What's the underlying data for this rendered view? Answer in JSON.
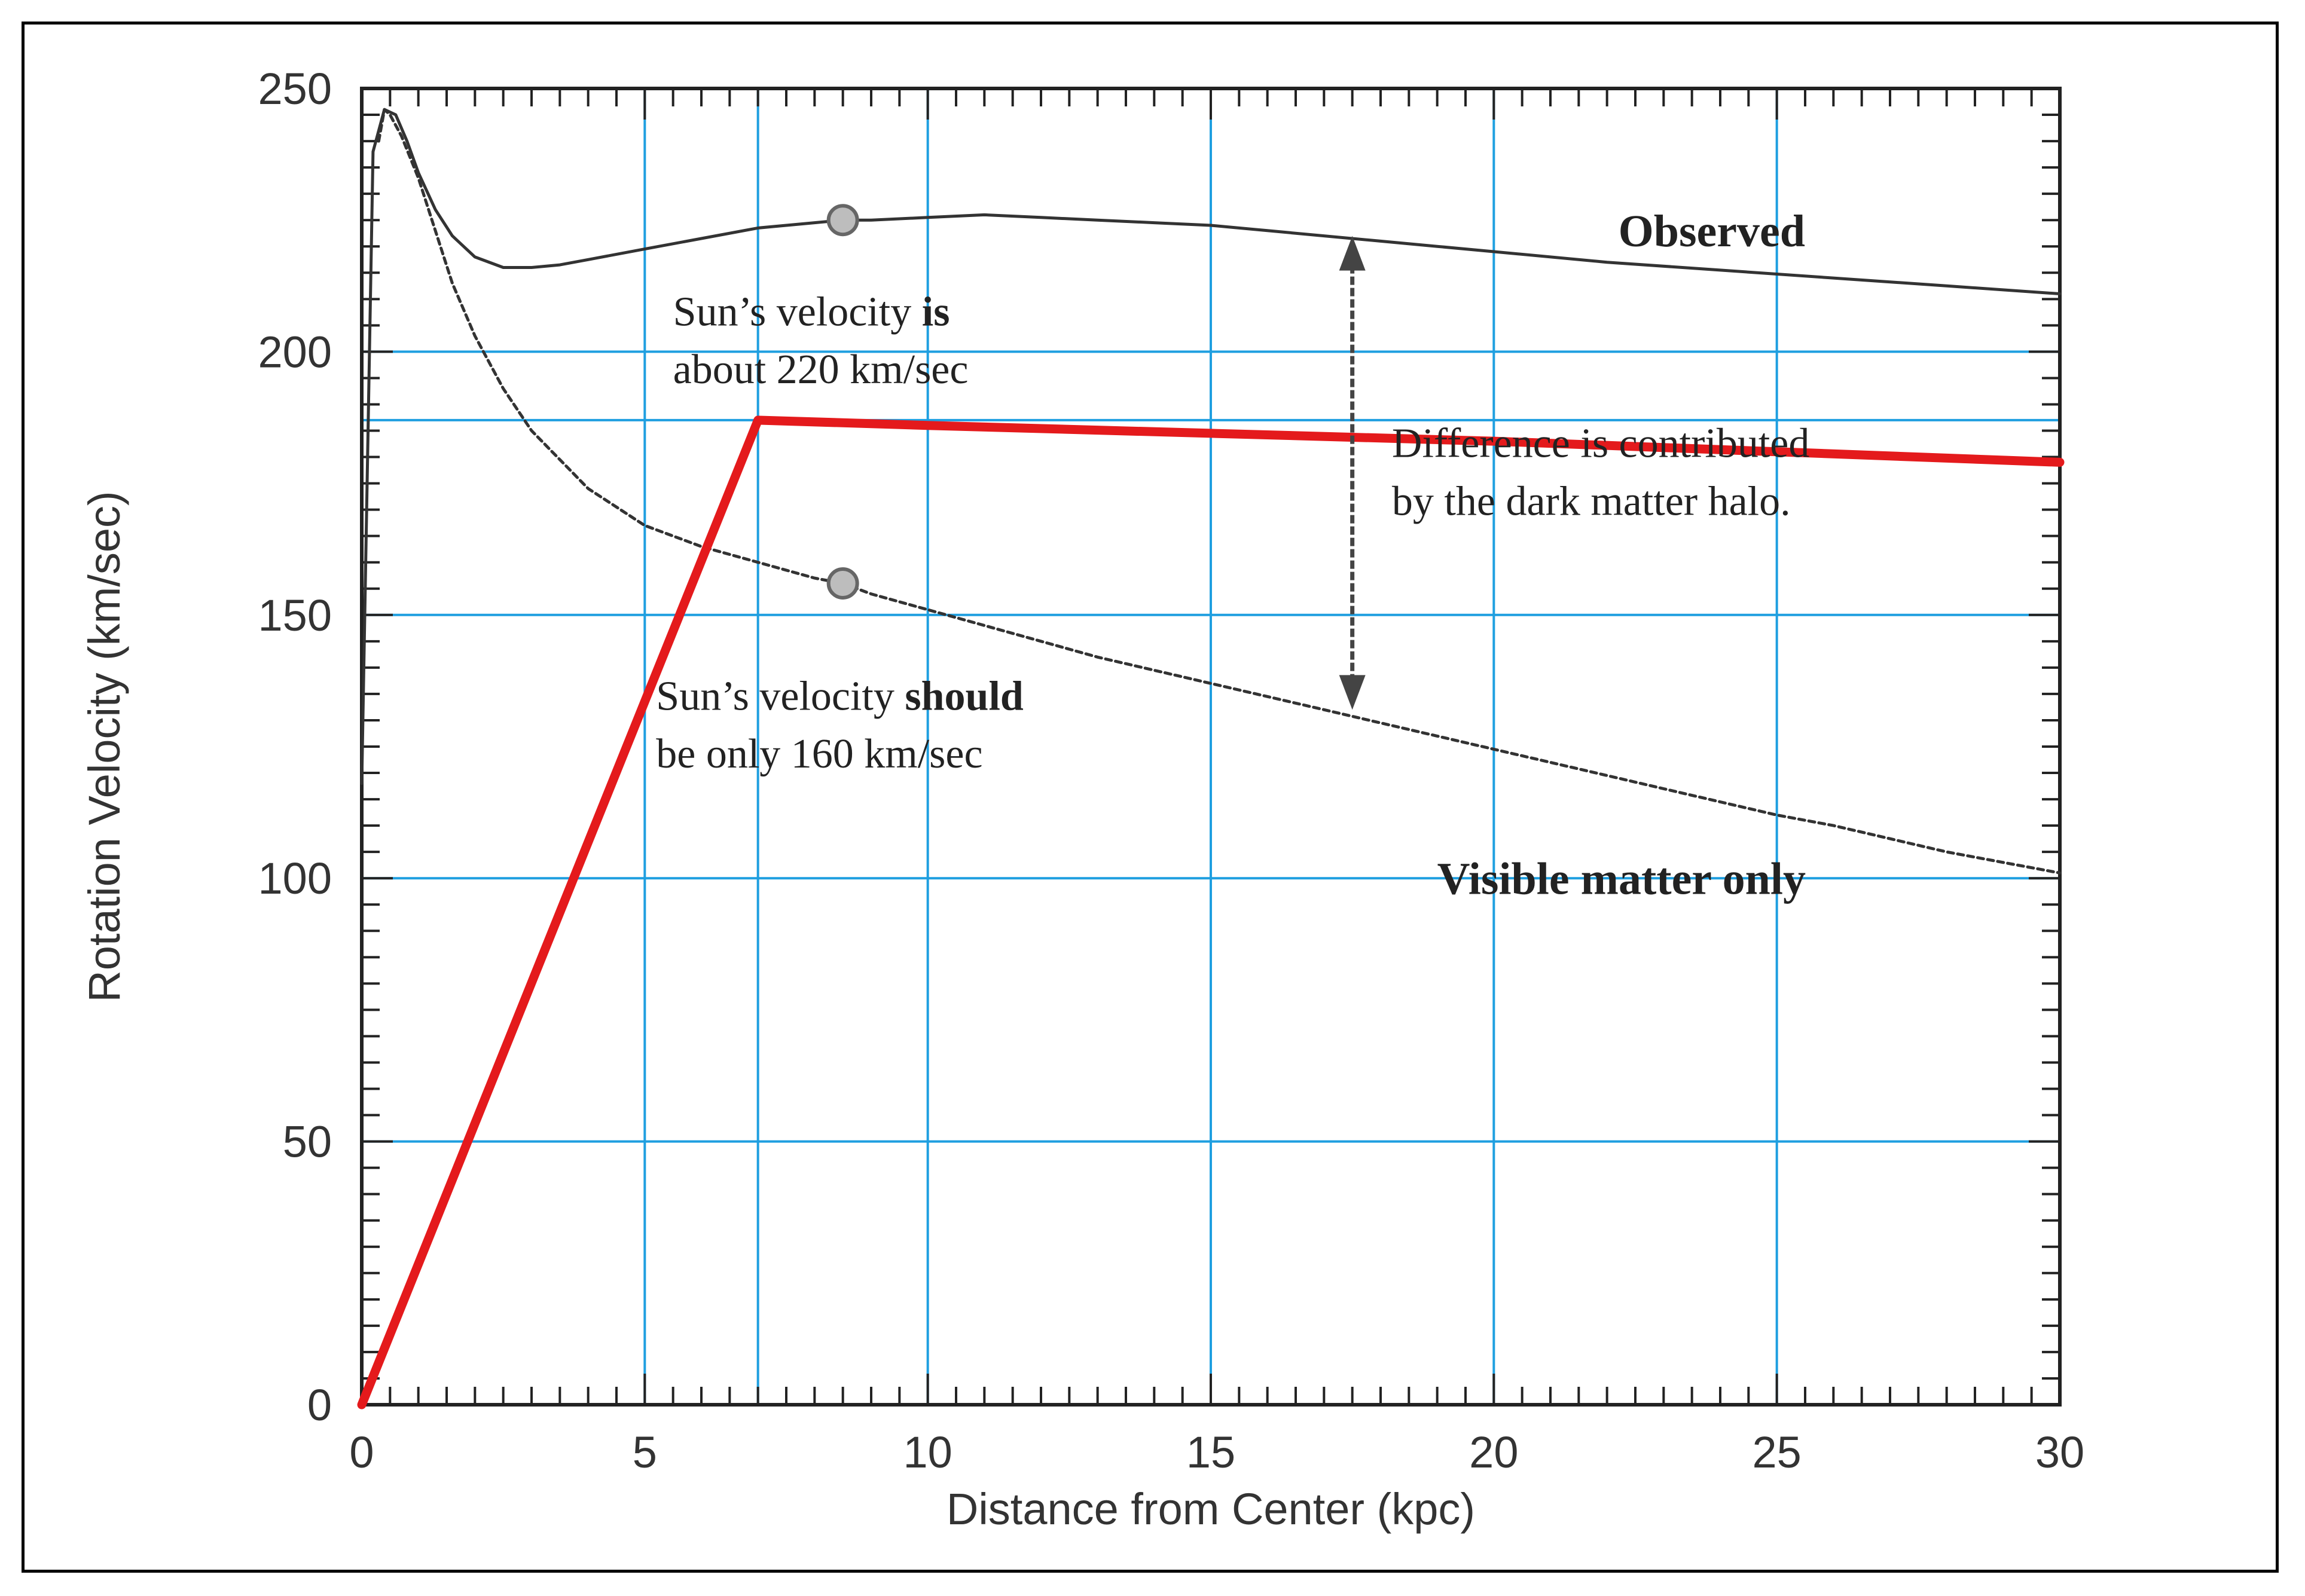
{
  "chart_data": {
    "type": "line",
    "xlabel": "Distance from Center (kpc)",
    "ylabel": "Rotation Velocity (km/sec)",
    "xlim": [
      0,
      30
    ],
    "ylim": [
      0,
      250
    ],
    "x_ticks": [
      0,
      5,
      10,
      15,
      20,
      25,
      30
    ],
    "y_ticks": [
      0,
      50,
      100,
      150,
      200,
      250
    ],
    "grid": true,
    "grid_color": "#1f9fe0",
    "extra_grid_x": [
      7
    ],
    "extra_grid_y": [
      187
    ],
    "series": [
      {
        "name": "Observed",
        "color": "#333333",
        "style": "solid",
        "x": [
          0,
          0.2,
          0.4,
          0.6,
          0.8,
          1,
          1.3,
          1.6,
          2,
          2.5,
          3,
          3.5,
          4,
          5,
          6,
          7,
          8,
          8.5,
          9,
          10,
          11,
          12,
          13,
          14,
          15,
          16,
          17,
          18,
          19,
          20,
          22,
          24,
          26,
          28,
          30
        ],
        "y": [
          118,
          238,
          246,
          245,
          240,
          234,
          227,
          222,
          218,
          216,
          216,
          216.5,
          217.5,
          219.5,
          221.5,
          223.5,
          224.5,
          225,
          225,
          225.5,
          226,
          225.5,
          225,
          224.5,
          224,
          223,
          222,
          221,
          220,
          219,
          217,
          215.5,
          214,
          212.5,
          211
        ]
      },
      {
        "name": "Visible matter only",
        "color": "#333333",
        "style": "dashed",
        "x": [
          0.3,
          0.4,
          0.5,
          0.7,
          1,
          1.3,
          1.6,
          2,
          2.5,
          3,
          4,
          5,
          6,
          7,
          8,
          8.5,
          9,
          10,
          11,
          12,
          13,
          14,
          15,
          16,
          17,
          18,
          19,
          20,
          21,
          22,
          23,
          24,
          25,
          26,
          27,
          28,
          29,
          30
        ],
        "y": [
          240,
          246,
          245,
          241,
          233,
          223,
          213,
          203,
          193,
          185,
          174,
          167,
          163,
          160,
          157,
          156,
          154,
          151,
          148,
          145,
          142,
          139.5,
          137,
          134.5,
          132,
          129.5,
          127,
          124.5,
          122,
          119.5,
          117,
          114.5,
          112,
          110,
          107.5,
          105,
          103,
          101
        ]
      },
      {
        "name": "",
        "color": "#e41a1c",
        "style": "solid",
        "x": [
          0,
          7,
          10,
          15,
          20,
          25,
          30
        ],
        "y": [
          0,
          187,
          186,
          184.5,
          183,
          181,
          179
        ]
      }
    ],
    "markers": [
      {
        "x": 8.5,
        "y": 225,
        "name": "observed-sun-marker"
      },
      {
        "x": 8.5,
        "y": 156,
        "name": "visible-sun-marker"
      }
    ],
    "arrow": {
      "x": 17.5,
      "y_top": 222,
      "y_bottom": 132
    },
    "annotations": {
      "observed_label": "Observed",
      "visible_label": "Visible matter only",
      "sun_is_line1_pre": "Sun’s velocity ",
      "sun_is_line1_bold": "is",
      "sun_is_line2": "about 220 km/sec",
      "sun_should_line1_pre": "Sun’s velocity ",
      "sun_should_line1_bold": "should",
      "sun_should_line2": "be only 160 km/sec",
      "difference_line1": "Difference is contributed",
      "difference_line2": "by the dark matter halo."
    }
  }
}
